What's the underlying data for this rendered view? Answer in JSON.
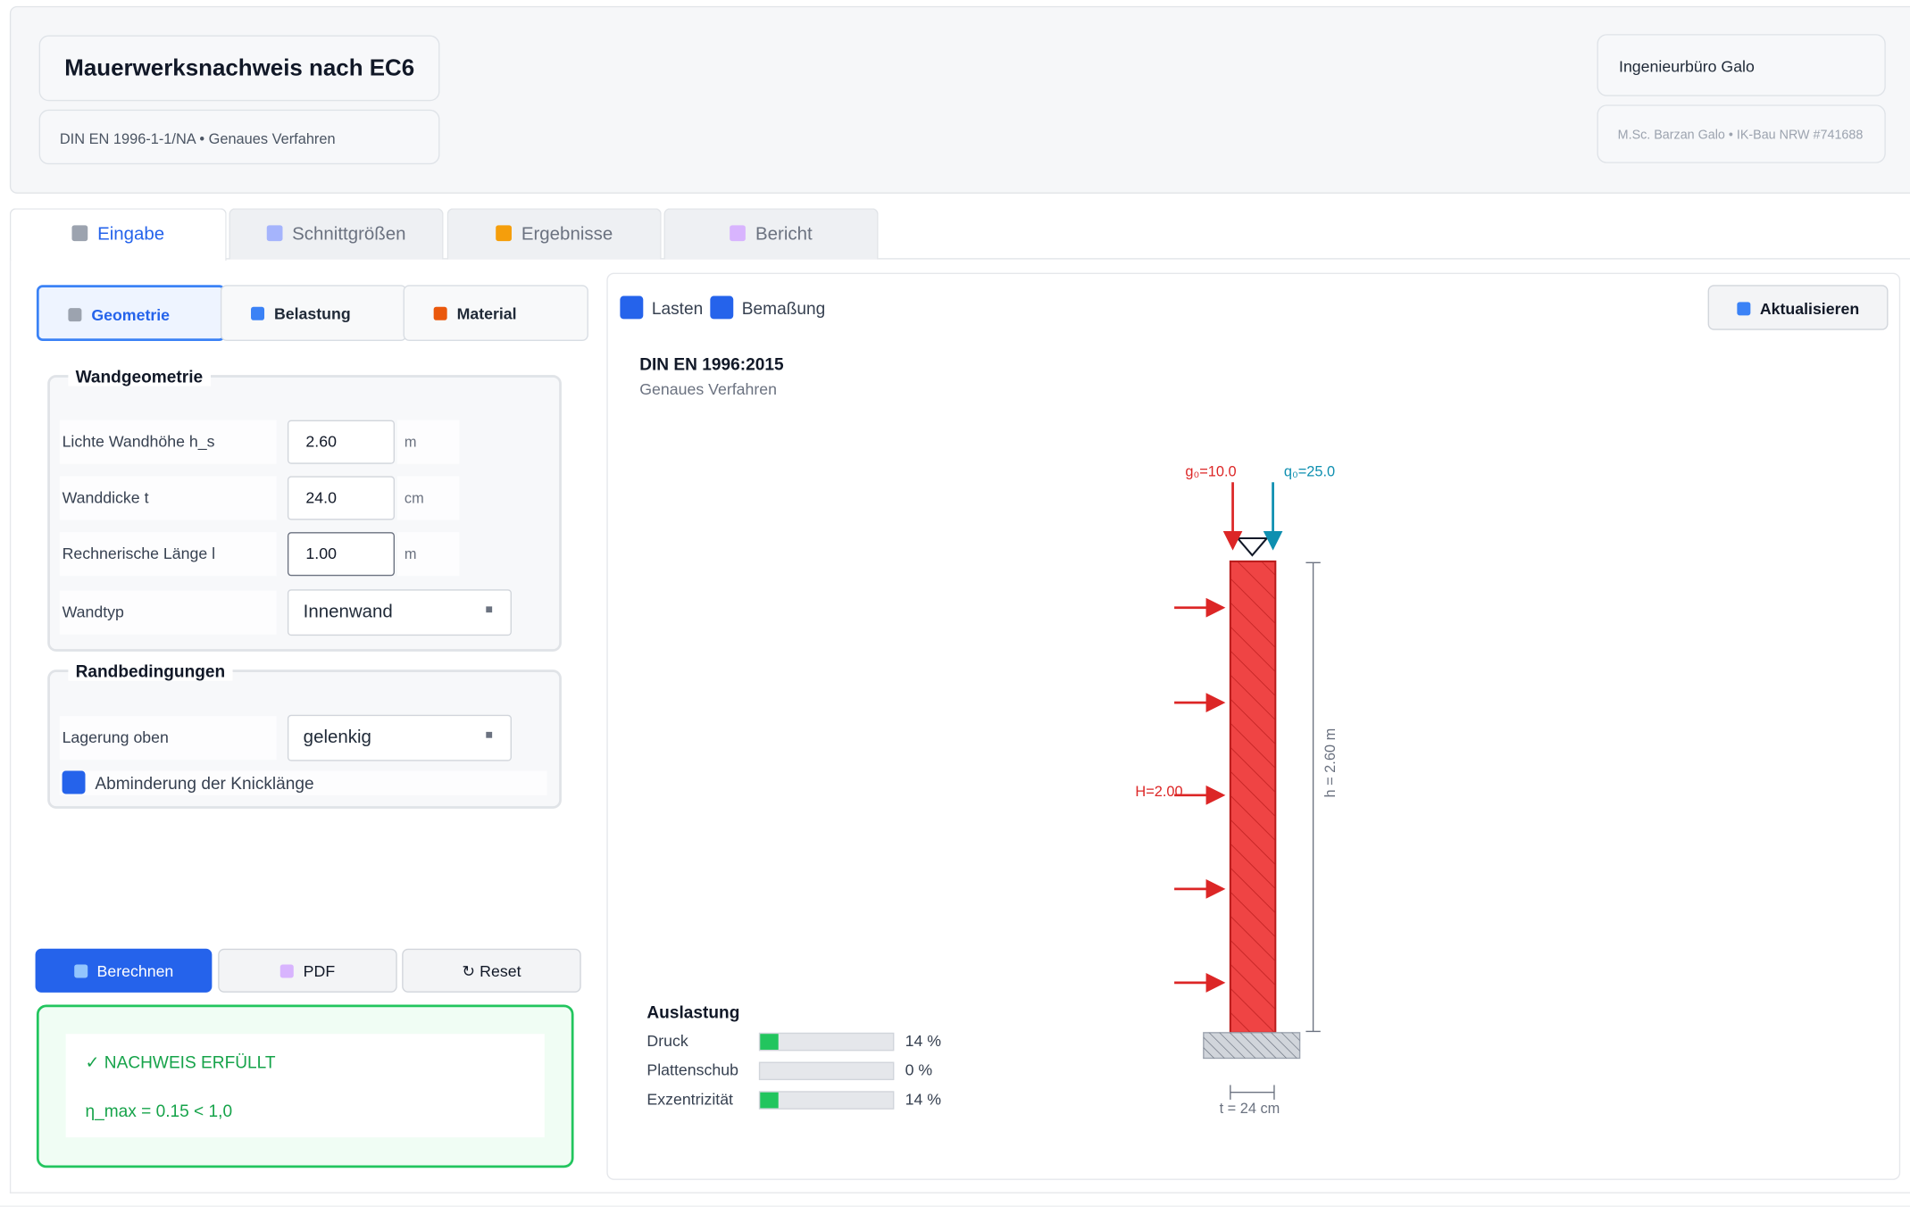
{
  "header": {
    "title": "Mauerwerksnachweis nach EC6",
    "subtitle": "DIN EN 1996-1-1/NA • Genaues Verfahren",
    "company": "Ingenieurbüro Galo",
    "company_sub": "M.Sc. Barzan Galo • IK-Bau NRW #741688"
  },
  "tabs": [
    {
      "label": "Eingabe",
      "icon": "ruler-triangle-icon",
      "active": true
    },
    {
      "label": "Schnittgrößen",
      "icon": "chart-line-icon",
      "active": false
    },
    {
      "label": "Ergebnisse",
      "icon": "bar-chart-icon",
      "active": false
    },
    {
      "label": "Bericht",
      "icon": "document-icon",
      "active": false
    }
  ],
  "subtabs": [
    {
      "label": "Geometrie",
      "icon": "ruler-triangle-icon",
      "active": true
    },
    {
      "label": "Belastung",
      "icon": "down-arrow-icon",
      "active": false
    },
    {
      "label": "Material",
      "icon": "brick-icon",
      "active": false
    }
  ],
  "wandgeometrie": {
    "legend": "Wandgeometrie",
    "fields": [
      {
        "label": "Lichte Wandhöhe h_s",
        "value": "2.60",
        "unit": "m"
      },
      {
        "label": "Wanddicke t",
        "value": "24.0",
        "unit": "cm"
      },
      {
        "label": "Rechnerische Länge l",
        "value": "1.00",
        "unit": "m"
      }
    ],
    "wandtyp_label": "Wandtyp",
    "wandtyp_value": "Innenwand"
  },
  "randbedingungen": {
    "legend": "Randbedingungen",
    "lagerung_label": "Lagerung oben",
    "lagerung_value": "gelenkig",
    "checkbox_label": "Abminderung der Knicklänge",
    "checkbox_checked": true
  },
  "actions": {
    "calculate": "Berechnen",
    "pdf": "PDF",
    "reset": "↻ Reset"
  },
  "result": {
    "status": "✓ NACHWEIS ERFÜLLT",
    "eta": "η_max = 0.15 < 1,0"
  },
  "viewer": {
    "toggle_loads": "Lasten",
    "toggle_dimensions": "Bemaßung",
    "refresh": "Aktualisieren",
    "norm": "DIN EN 1996:2015",
    "norm_sub": "Genaues Verfahren"
  },
  "drawing": {
    "g0": "g₀=10.0",
    "q0": "q₀=25.0",
    "H": "H=2.00",
    "height_dim": "h = 2.60 m",
    "thickness_dim": "t = 24 cm",
    "colors": {
      "wall": "#ef4444",
      "g_arrow": "#dc2626",
      "q_arrow": "#0e8fb0"
    }
  },
  "auslastung": {
    "title": "Auslastung",
    "items": [
      {
        "label": "Druck",
        "percent": 14,
        "value": "14 %"
      },
      {
        "label": "Plattenschub",
        "percent": 0,
        "value": "0 %"
      },
      {
        "label": "Exzentrizität",
        "percent": 14,
        "value": "14 %"
      }
    ]
  }
}
